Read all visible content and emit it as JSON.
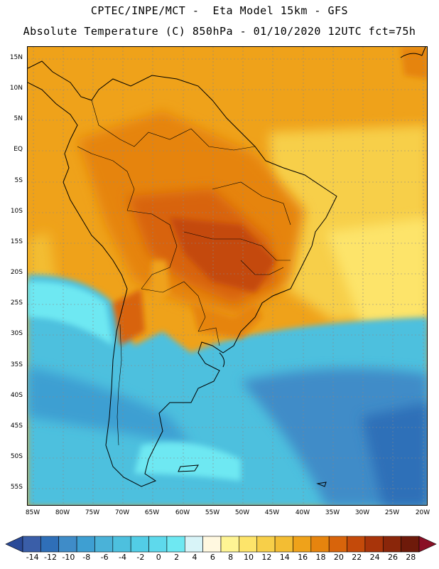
{
  "header": {
    "title_line1": "CPTEC/INPE/MCT -  Eta Model 15km - GFS",
    "title_line2": "Absolute Temperature (C) 850hPa - 01/10/2020 12UTC fct=75h"
  },
  "map": {
    "region": "South America",
    "variable": "Absolute Temperature (C) 850hPa",
    "lat_ticks": [
      "15N",
      "10N",
      "5N",
      "EQ",
      "5S",
      "10S",
      "15S",
      "20S",
      "25S",
      "30S",
      "35S",
      "40S",
      "45S",
      "50S",
      "55S"
    ],
    "lon_ticks": [
      "85W",
      "80W",
      "75W",
      "70W",
      "65W",
      "60W",
      "55W",
      "50W",
      "45W",
      "40W",
      "35W",
      "30W",
      "25W",
      "20W"
    ]
  },
  "colorbar": {
    "labels": [
      "-14",
      "-12",
      "-10",
      "-8",
      "-6",
      "-4",
      "-2",
      "0",
      "2",
      "4",
      "6",
      "8",
      "10",
      "12",
      "14",
      "16",
      "18",
      "20",
      "22",
      "24",
      "26",
      "28"
    ],
    "colors": [
      "#3a5ea8",
      "#2f6fb8",
      "#3f8cc8",
      "#3e9fd2",
      "#4ab2d8",
      "#4dc0de",
      "#52cde6",
      "#5ed9ec",
      "#6ee8f2",
      "#d8f4f8",
      "#fff8e0",
      "#fef494",
      "#fde46a",
      "#f7cf49",
      "#f3bd33",
      "#efa21a",
      "#e6840e",
      "#d8640b",
      "#c44a0a",
      "#a8340a",
      "#8a260a",
      "#6e1a0a"
    ],
    "under_color": "#2a4a98",
    "over_color": "#8a0f25"
  }
}
